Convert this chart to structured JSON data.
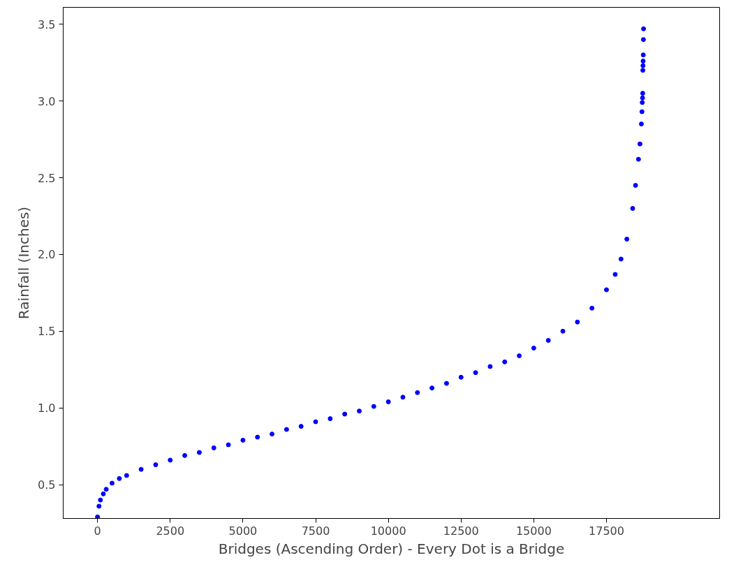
{
  "chart_data": {
    "type": "scatter",
    "xlabel": "Bridges (Ascending Order) - Every Dot is a Bridge",
    "ylabel": "Rainfall (Inches)",
    "x": [
      0,
      50,
      100,
      200,
      300,
      500,
      750,
      1000,
      1500,
      2000,
      2500,
      3000,
      3500,
      4000,
      4500,
      5000,
      5500,
      6000,
      6500,
      7000,
      7500,
      8000,
      8500,
      9000,
      9500,
      10000,
      10500,
      11000,
      11500,
      12000,
      12500,
      13000,
      13500,
      14000,
      14500,
      15000,
      15500,
      16000,
      16500,
      17000,
      17500,
      17800,
      18000,
      18200,
      18400,
      18500,
      18600,
      18650,
      18700,
      18720,
      18730,
      18740,
      18745,
      18750,
      18755,
      18760,
      18765,
      18770,
      18775
    ],
    "series": [
      {
        "color": "#0000ff",
        "values": [
          0.29,
          0.36,
          0.4,
          0.44,
          0.47,
          0.51,
          0.54,
          0.56,
          0.6,
          0.63,
          0.66,
          0.69,
          0.71,
          0.74,
          0.76,
          0.79,
          0.81,
          0.83,
          0.86,
          0.88,
          0.91,
          0.93,
          0.96,
          0.98,
          1.01,
          1.04,
          1.07,
          1.1,
          1.13,
          1.16,
          1.2,
          1.23,
          1.27,
          1.3,
          1.34,
          1.39,
          1.44,
          1.5,
          1.56,
          1.65,
          1.77,
          1.87,
          1.97,
          2.1,
          2.3,
          2.45,
          2.62,
          2.72,
          2.85,
          2.93,
          2.99,
          3.02,
          3.05,
          3.2,
          3.23,
          3.26,
          3.3,
          3.4,
          3.47
        ]
      }
    ],
    "xlim": [
      -1180,
      21390
    ],
    "ylim": [
      0.28,
      3.61
    ],
    "xticks": [
      0,
      2500,
      5000,
      7500,
      10000,
      12500,
      15000,
      17500
    ],
    "yticks": [
      {
        "value": 0.5,
        "label": "0.5"
      },
      {
        "value": 1.0,
        "label": "1.0"
      },
      {
        "value": 1.5,
        "label": "1.5"
      },
      {
        "value": 2.0,
        "label": "2.0"
      },
      {
        "value": 2.5,
        "label": "2.5"
      },
      {
        "value": 3.0,
        "label": "3.0"
      },
      {
        "value": 3.5,
        "label": "3.5"
      }
    ],
    "marker": "circle",
    "grid": false
  }
}
